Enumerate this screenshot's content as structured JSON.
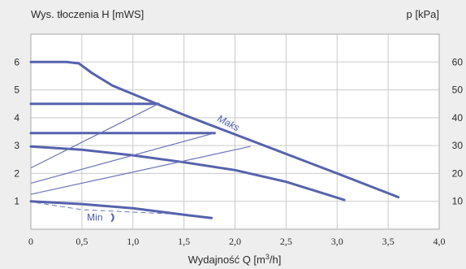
{
  "chart_data": {
    "type": "line",
    "ylabel_left": "Wys. tłoczenia H [mWS]",
    "ylabel_right": "p [kPa]",
    "xlabel_prefix": "Wydajność Q [m",
    "xlabel_sup": "3",
    "xlabel_suffix": "/h]",
    "xlim": [
      0,
      4.0
    ],
    "ylim": [
      0,
      7
    ],
    "x_ticks": [
      "0",
      "0,5",
      "1,0",
      "1,5",
      "2,0",
      "2,5",
      "3,0",
      "3,5",
      "4,0"
    ],
    "y_ticks_left": [
      "1",
      "2",
      "3",
      "4",
      "5",
      "6"
    ],
    "y_ticks_right": [
      "10",
      "20",
      "30",
      "40",
      "50",
      "60"
    ],
    "grid": true,
    "series": [
      {
        "name": "Maks",
        "style": "thick",
        "points": [
          [
            0,
            6.0
          ],
          [
            0.35,
            6.0
          ],
          [
            0.47,
            5.95
          ],
          [
            0.6,
            5.6
          ],
          [
            0.8,
            5.15
          ],
          [
            1.1,
            4.7
          ],
          [
            1.5,
            4.1
          ],
          [
            2.0,
            3.4
          ],
          [
            2.5,
            2.7
          ],
          [
            3.0,
            2.0
          ],
          [
            3.6,
            1.15
          ]
        ]
      },
      {
        "name": "",
        "style": "thick",
        "points": [
          [
            0,
            4.5
          ],
          [
            1.25,
            4.5
          ]
        ]
      },
      {
        "name": "",
        "style": "thick",
        "points": [
          [
            0,
            3.45
          ],
          [
            1.8,
            3.45
          ]
        ]
      },
      {
        "name": "",
        "style": "thick",
        "points": [
          [
            0,
            2.97
          ],
          [
            0.5,
            2.85
          ],
          [
            1.0,
            2.65
          ],
          [
            1.5,
            2.4
          ],
          [
            2.0,
            2.12
          ],
          [
            2.5,
            1.7
          ],
          [
            3.07,
            1.05
          ]
        ]
      },
      {
        "name": "Min",
        "style": "thick",
        "points": [
          [
            0,
            1.0
          ],
          [
            0.5,
            0.9
          ],
          [
            1.0,
            0.75
          ],
          [
            1.5,
            0.52
          ],
          [
            1.77,
            0.4
          ]
        ]
      },
      {
        "name": "",
        "style": "thin",
        "points": [
          [
            0,
            2.2
          ],
          [
            1.25,
            4.5
          ]
        ]
      },
      {
        "name": "",
        "style": "thin",
        "points": [
          [
            0,
            1.65
          ],
          [
            1.8,
            3.45
          ]
        ]
      },
      {
        "name": "",
        "style": "thin",
        "points": [
          [
            0,
            1.25
          ],
          [
            2.15,
            2.97
          ]
        ]
      },
      {
        "name": "",
        "style": "dashed",
        "points": [
          [
            0.05,
            0.95
          ],
          [
            0.5,
            0.7
          ],
          [
            1.35,
            0.55
          ]
        ]
      }
    ],
    "annotations": [
      {
        "text": "Maks",
        "x": 1.82,
        "y": 3.9
      },
      {
        "text": "Min",
        "x": 0.55,
        "y": 0.3
      }
    ],
    "colors": {
      "curve": "#5562ad",
      "grid": "#c9c9cc",
      "background": "#eeeeef",
      "plot": "#ffffff"
    }
  }
}
